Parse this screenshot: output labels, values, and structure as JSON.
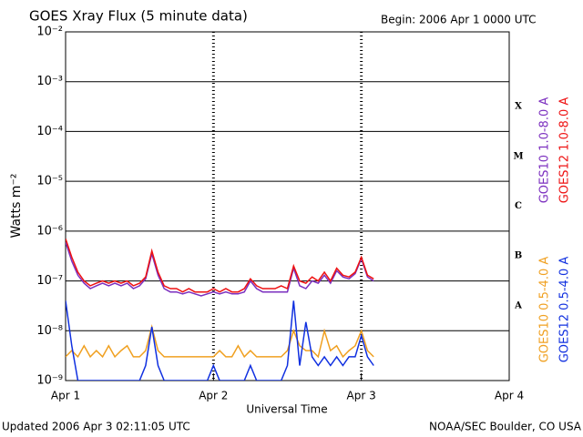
{
  "chart_data": {
    "type": "line",
    "title": "GOES Xray Flux (5 minute data)",
    "subtitle": "Begin:  2006 Apr 1 0000 UTC",
    "x_label": "Universal Time",
    "y_label": "Watts m⁻²",
    "footer_left": "Updated 2006 Apr  3 02:11:05 UTC",
    "footer_right": "NOAA/SEC Boulder, CO USA",
    "class_labels": [
      "X",
      "M",
      "C",
      "B",
      "A"
    ],
    "log_scale": true,
    "grid": true,
    "xlim": [
      0,
      72
    ],
    "xticks": [
      {
        "value": 0,
        "label": "Apr 1"
      },
      {
        "value": 24,
        "label": "Apr 2"
      },
      {
        "value": 48,
        "label": "Apr 3"
      },
      {
        "value": 72,
        "label": "Apr 4"
      }
    ],
    "ylim": [
      1e-09,
      0.01
    ],
    "yticks": [
      {
        "value": 0.01,
        "label": "10⁻²"
      },
      {
        "value": 0.001,
        "label": "10⁻³"
      },
      {
        "value": 0.0001,
        "label": "10⁻⁴"
      },
      {
        "value": 1e-05,
        "label": "10⁻⁵"
      },
      {
        "value": 1e-06,
        "label": "10⁻⁶"
      },
      {
        "value": 1e-07,
        "label": "10⁻⁷"
      },
      {
        "value": 1e-08,
        "label": "10⁻⁸"
      },
      {
        "value": 1e-09,
        "label": "10⁻⁹"
      }
    ],
    "x": [
      0,
      1,
      2,
      3,
      4,
      5,
      6,
      7,
      8,
      9,
      10,
      11,
      12,
      13,
      14,
      15,
      16,
      17,
      18,
      19,
      20,
      21,
      22,
      23,
      24,
      25,
      26,
      27,
      28,
      29,
      30,
      31,
      32,
      33,
      34,
      35,
      36,
      37,
      38,
      39,
      40,
      41,
      42,
      43,
      44,
      45,
      46,
      47,
      48,
      49,
      50
    ],
    "series": [
      {
        "name": "GOES10 1.0-8.0 A",
        "color": "#7b2fbf",
        "values": [
          6e-07,
          2.5e-07,
          1.3e-07,
          9e-08,
          7e-08,
          8e-08,
          9e-08,
          8e-08,
          9e-08,
          8e-08,
          9e-08,
          7e-08,
          8e-08,
          1.1e-07,
          3.5e-07,
          1.3e-07,
          7e-08,
          6e-08,
          6e-08,
          5.5e-08,
          6e-08,
          5.5e-08,
          5e-08,
          5.5e-08,
          6e-08,
          5.5e-08,
          6e-08,
          5.5e-08,
          5.5e-08,
          6e-08,
          1e-07,
          7e-08,
          6e-08,
          6e-08,
          6e-08,
          6e-08,
          6e-08,
          1.8e-07,
          8e-08,
          7e-08,
          1e-07,
          9e-08,
          1.3e-07,
          9e-08,
          1.6e-07,
          1.2e-07,
          1.1e-07,
          1.4e-07,
          2.8e-07,
          1.2e-07,
          1e-07
        ]
      },
      {
        "name": "GOES12 1.0-8.0 A",
        "color": "#ee1111",
        "values": [
          7e-07,
          3e-07,
          1.5e-07,
          1e-07,
          8e-08,
          9e-08,
          1e-07,
          9e-08,
          1e-07,
          9e-08,
          1e-07,
          8e-08,
          9e-08,
          1.2e-07,
          4e-07,
          1.5e-07,
          8e-08,
          7e-08,
          7e-08,
          6e-08,
          7e-08,
          6e-08,
          6e-08,
          6e-08,
          7e-08,
          6e-08,
          7e-08,
          6e-08,
          6e-08,
          7e-08,
          1.1e-07,
          8e-08,
          7e-08,
          7e-08,
          7e-08,
          8e-08,
          7e-08,
          2e-07,
          1e-07,
          9e-08,
          1.2e-07,
          1e-07,
          1.5e-07,
          1e-07,
          1.8e-07,
          1.3e-07,
          1.2e-07,
          1.5e-07,
          3e-07,
          1.3e-07,
          1.1e-07
        ]
      },
      {
        "name": "GOES10 0.5-4.0 A",
        "color": "#f0a020",
        "values": [
          3e-09,
          4e-09,
          3e-09,
          5e-09,
          3e-09,
          4e-09,
          3e-09,
          5e-09,
          3e-09,
          4e-09,
          5e-09,
          3e-09,
          3e-09,
          4e-09,
          1.2e-08,
          4e-09,
          3e-09,
          3e-09,
          3e-09,
          3e-09,
          3e-09,
          3e-09,
          3e-09,
          3e-09,
          3e-09,
          4e-09,
          3e-09,
          3e-09,
          5e-09,
          3e-09,
          4e-09,
          3e-09,
          3e-09,
          3e-09,
          3e-09,
          3e-09,
          4e-09,
          1e-08,
          5e-09,
          4e-09,
          4e-09,
          3e-09,
          1e-08,
          4e-09,
          5e-09,
          3e-09,
          4e-09,
          5e-09,
          1e-08,
          4e-09,
          3e-09
        ]
      },
      {
        "name": "GOES12 0.5-4.0 A",
        "color": "#1030e0",
        "values": [
          4e-08,
          5e-09,
          1e-09,
          1e-09,
          1e-09,
          1e-09,
          1e-09,
          1e-09,
          1e-09,
          1e-09,
          1e-09,
          1e-09,
          1e-09,
          2e-09,
          1.2e-08,
          2e-09,
          1e-09,
          1e-09,
          1e-09,
          1e-09,
          1e-09,
          1e-09,
          1e-09,
          1e-09,
          2e-09,
          1e-09,
          1e-09,
          1e-09,
          1e-09,
          1e-09,
          2e-09,
          1e-09,
          1e-09,
          1e-09,
          1e-09,
          1e-09,
          2e-09,
          4e-08,
          2e-09,
          1.5e-08,
          3e-09,
          2e-09,
          3e-09,
          2e-09,
          3e-09,
          2e-09,
          3e-09,
          3e-09,
          8e-09,
          3e-09,
          2e-09
        ]
      }
    ]
  }
}
